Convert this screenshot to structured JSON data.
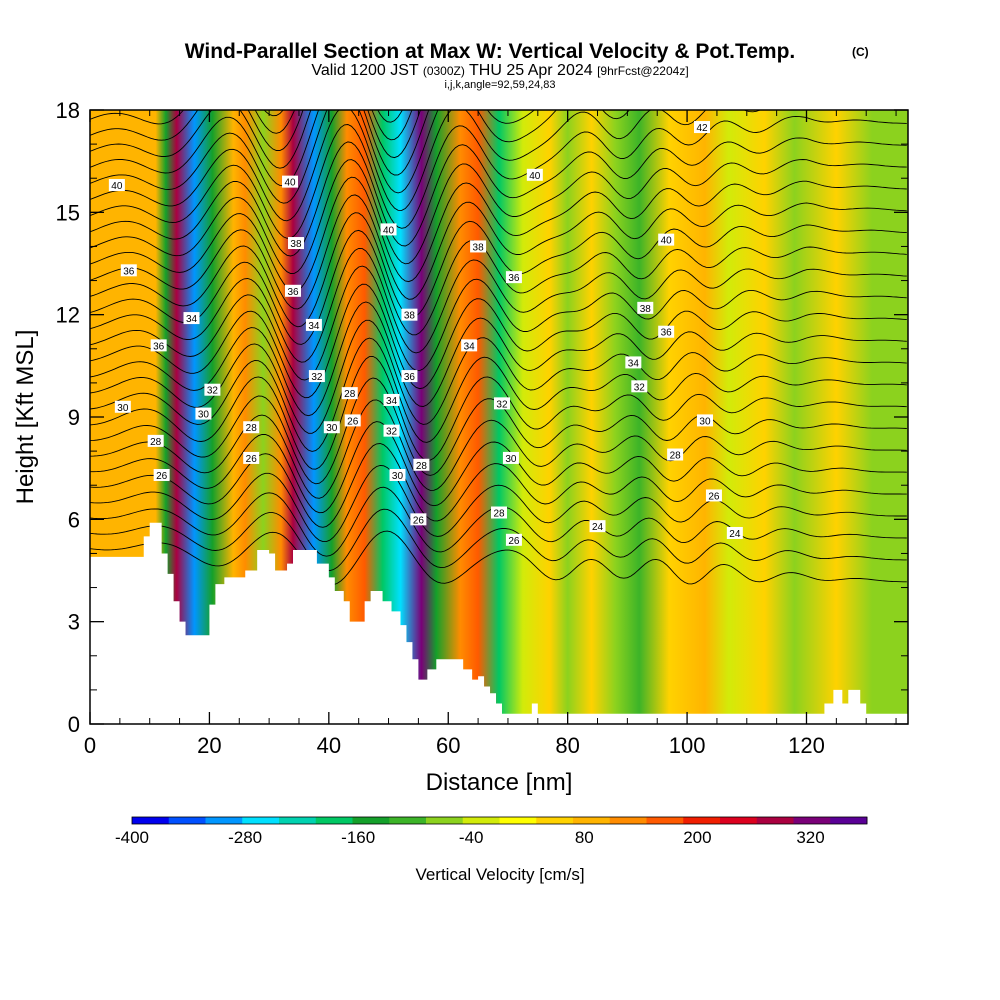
{
  "chart_data": {
    "type": "heatmap",
    "title": {
      "main": "Wind-Parallel Section at Max W: Vertical Velocity & Pot.Temp.",
      "copyright": "(C)",
      "line2_a": "Valid 1200 JST ",
      "line2_b": "(0300Z)",
      "line2_c": " THU 25 Apr 2024 ",
      "line2_d": "[9hrFcst@2204z]",
      "line3": "i,j,k,angle=92,59,24,83"
    },
    "xlabel": "Distance [nm]",
    "ylabel": "Height [Kft MSL]",
    "xlim": [
      0,
      137
    ],
    "ylim": [
      0,
      18
    ],
    "x_ticks": [
      "0",
      "20",
      "40",
      "60",
      "80",
      "100",
      "120"
    ],
    "y_ticks": [
      "0",
      "3",
      "6",
      "9",
      "12",
      "15",
      "18"
    ],
    "colorbar": {
      "label": "Vertical Velocity [cm/s]",
      "tick_labels": [
        "-400",
        "-280",
        "-160",
        "-40",
        "80",
        "200",
        "320"
      ],
      "tick_values": [
        -400,
        -280,
        -160,
        -40,
        80,
        200,
        320
      ],
      "range": [
        -400,
        380
      ],
      "step": 40,
      "colors": [
        "#0000ee",
        "#0050ff",
        "#0096ff",
        "#00e0ff",
        "#00d2b0",
        "#00c864",
        "#14a02a",
        "#3cb428",
        "#8cd21e",
        "#d2eb0a",
        "#ffff00",
        "#ffd200",
        "#ffb400",
        "#ff8c00",
        "#ff5a00",
        "#f01e00",
        "#dc001e",
        "#aa0040",
        "#7a0078",
        "#5a0096"
      ]
    },
    "vertical_velocity_bands": [
      {
        "x": 11,
        "w": 90
      },
      {
        "x": 12.7,
        "w": -150
      },
      {
        "x": 14.5,
        "w": 300
      },
      {
        "x": 17.5,
        "w": -300
      },
      {
        "x": 20.5,
        "w": -150
      },
      {
        "x": 24,
        "w": 100
      },
      {
        "x": 26,
        "w": 130
      },
      {
        "x": 29,
        "w": -80
      },
      {
        "x": 32,
        "w": 120
      },
      {
        "x": 34,
        "w": 280
      },
      {
        "x": 37.5,
        "w": -300
      },
      {
        "x": 40.5,
        "w": -150
      },
      {
        "x": 43,
        "w": 120
      },
      {
        "x": 46,
        "w": 160
      },
      {
        "x": 49,
        "w": -200
      },
      {
        "x": 52,
        "w": -280
      },
      {
        "x": 55.5,
        "w": 320
      },
      {
        "x": 58,
        "w": -160
      },
      {
        "x": 62,
        "w": 120
      },
      {
        "x": 65,
        "w": 160
      },
      {
        "x": 68.5,
        "w": -200
      },
      {
        "x": 72.5,
        "w": -40
      },
      {
        "x": 77,
        "w": 60
      },
      {
        "x": 80,
        "w": -60
      },
      {
        "x": 84,
        "w": 40
      },
      {
        "x": 88,
        "w": -80
      },
      {
        "x": 92,
        "w": -120
      },
      {
        "x": 97,
        "w": 40
      },
      {
        "x": 103,
        "w": 90
      },
      {
        "x": 107,
        "w": -40
      },
      {
        "x": 113,
        "w": 60
      },
      {
        "x": 118,
        "w": -60
      },
      {
        "x": 125,
        "w": 50
      },
      {
        "x": 131,
        "w": -80
      }
    ],
    "terrain": [
      {
        "x": 0,
        "h": 4.9
      },
      {
        "x": 8,
        "h": 4.9
      },
      {
        "x": 9,
        "h": 5.5
      },
      {
        "x": 10,
        "h": 5.9
      },
      {
        "x": 11.5,
        "h": 5.9
      },
      {
        "x": 12,
        "h": 5.0
      },
      {
        "x": 13,
        "h": 4.4
      },
      {
        "x": 14,
        "h": 3.6
      },
      {
        "x": 15,
        "h": 3.0
      },
      {
        "x": 16,
        "h": 2.6
      },
      {
        "x": 19,
        "h": 2.6
      },
      {
        "x": 20,
        "h": 3.5
      },
      {
        "x": 21,
        "h": 4.1
      },
      {
        "x": 22.5,
        "h": 4.3
      },
      {
        "x": 26,
        "h": 4.5
      },
      {
        "x": 28,
        "h": 5.1
      },
      {
        "x": 30,
        "h": 5.0
      },
      {
        "x": 31,
        "h": 4.5
      },
      {
        "x": 33,
        "h": 4.7
      },
      {
        "x": 34,
        "h": 5.1
      },
      {
        "x": 37,
        "h": 5.1
      },
      {
        "x": 38,
        "h": 4.7
      },
      {
        "x": 40,
        "h": 4.3
      },
      {
        "x": 41,
        "h": 3.9
      },
      {
        "x": 42.5,
        "h": 3.6
      },
      {
        "x": 43.5,
        "h": 3.0
      },
      {
        "x": 45,
        "h": 3.0
      },
      {
        "x": 46,
        "h": 3.6
      },
      {
        "x": 47,
        "h": 3.9
      },
      {
        "x": 48,
        "h": 3.9
      },
      {
        "x": 49,
        "h": 3.6
      },
      {
        "x": 50.5,
        "h": 3.3
      },
      {
        "x": 52,
        "h": 2.9
      },
      {
        "x": 53,
        "h": 2.4
      },
      {
        "x": 54,
        "h": 1.9
      },
      {
        "x": 55,
        "h": 1.3
      },
      {
        "x": 56.5,
        "h": 1.6
      },
      {
        "x": 58,
        "h": 1.9
      },
      {
        "x": 61.5,
        "h": 1.9
      },
      {
        "x": 62.5,
        "h": 1.6
      },
      {
        "x": 64,
        "h": 1.3
      },
      {
        "x": 65,
        "h": 1.4
      },
      {
        "x": 66,
        "h": 1.1
      },
      {
        "x": 67,
        "h": 0.9
      },
      {
        "x": 68,
        "h": 0.6
      },
      {
        "x": 69,
        "h": 0.3
      },
      {
        "x": 73,
        "h": 0.3
      },
      {
        "x": 74,
        "h": 0.6
      },
      {
        "x": 75,
        "h": 0.3
      },
      {
        "x": 122,
        "h": 0.3
      },
      {
        "x": 123,
        "h": 0.6
      },
      {
        "x": 124.5,
        "h": 1.0
      },
      {
        "x": 126,
        "h": 0.6
      },
      {
        "x": 127,
        "h": 1.0
      },
      {
        "x": 129,
        "h": 0.6
      },
      {
        "x": 130,
        "h": 0.3
      },
      {
        "x": 137,
        "h": 0.3
      }
    ],
    "potential_temperature_contours": {
      "interval": 1,
      "labels": [
        {
          "text": "40",
          "x": 4.5,
          "y": 15.8
        },
        {
          "text": "36",
          "x": 6.5,
          "y": 13.3
        },
        {
          "text": "36",
          "x": 11.5,
          "y": 11.1
        },
        {
          "text": "30",
          "x": 5.5,
          "y": 9.3
        },
        {
          "text": "28",
          "x": 11,
          "y": 8.3
        },
        {
          "text": "26",
          "x": 12,
          "y": 7.3
        },
        {
          "text": "34",
          "x": 17,
          "y": 11.9
        },
        {
          "text": "32",
          "x": 20.5,
          "y": 9.8
        },
        {
          "text": "30",
          "x": 19,
          "y": 9.1
        },
        {
          "text": "28",
          "x": 27,
          "y": 8.7
        },
        {
          "text": "26",
          "x": 27,
          "y": 7.8
        },
        {
          "text": "40",
          "x": 33.5,
          "y": 15.9
        },
        {
          "text": "38",
          "x": 34.5,
          "y": 14.1
        },
        {
          "text": "36",
          "x": 34,
          "y": 12.7
        },
        {
          "text": "34",
          "x": 37.5,
          "y": 11.7
        },
        {
          "text": "32",
          "x": 38,
          "y": 10.2
        },
        {
          "text": "30",
          "x": 40.5,
          "y": 8.7
        },
        {
          "text": "28",
          "x": 43.5,
          "y": 9.7
        },
        {
          "text": "26",
          "x": 44,
          "y": 8.9
        },
        {
          "text": "40",
          "x": 50,
          "y": 14.5
        },
        {
          "text": "38",
          "x": 53.5,
          "y": 12
        },
        {
          "text": "36",
          "x": 53.5,
          "y": 10.2
        },
        {
          "text": "34",
          "x": 50.5,
          "y": 9.5
        },
        {
          "text": "32",
          "x": 50.5,
          "y": 8.6
        },
        {
          "text": "30",
          "x": 51.5,
          "y": 7.3
        },
        {
          "text": "28",
          "x": 55.5,
          "y": 7.6
        },
        {
          "text": "26",
          "x": 55,
          "y": 6
        },
        {
          "text": "38",
          "x": 65,
          "y": 14
        },
        {
          "text": "36",
          "x": 71,
          "y": 13.1
        },
        {
          "text": "34",
          "x": 63.5,
          "y": 11.1
        },
        {
          "text": "32",
          "x": 69,
          "y": 9.4
        },
        {
          "text": "30",
          "x": 70.5,
          "y": 7.8
        },
        {
          "text": "28",
          "x": 68.5,
          "y": 6.2
        },
        {
          "text": "26",
          "x": 71,
          "y": 5.4
        },
        {
          "text": "24",
          "x": 85,
          "y": 5.8
        },
        {
          "text": "40",
          "x": 74.5,
          "y": 16.1
        },
        {
          "text": "42",
          "x": 102.5,
          "y": 17.5
        },
        {
          "text": "40",
          "x": 96.5,
          "y": 14.2
        },
        {
          "text": "38",
          "x": 93,
          "y": 12.2
        },
        {
          "text": "36",
          "x": 96.5,
          "y": 11.5
        },
        {
          "text": "34",
          "x": 91,
          "y": 10.6
        },
        {
          "text": "32",
          "x": 92,
          "y": 9.9
        },
        {
          "text": "30",
          "x": 103,
          "y": 8.9
        },
        {
          "text": "28",
          "x": 98,
          "y": 7.9
        },
        {
          "text": "26",
          "x": 104.5,
          "y": 6.7
        },
        {
          "text": "24",
          "x": 108,
          "y": 5.6
        }
      ]
    }
  }
}
